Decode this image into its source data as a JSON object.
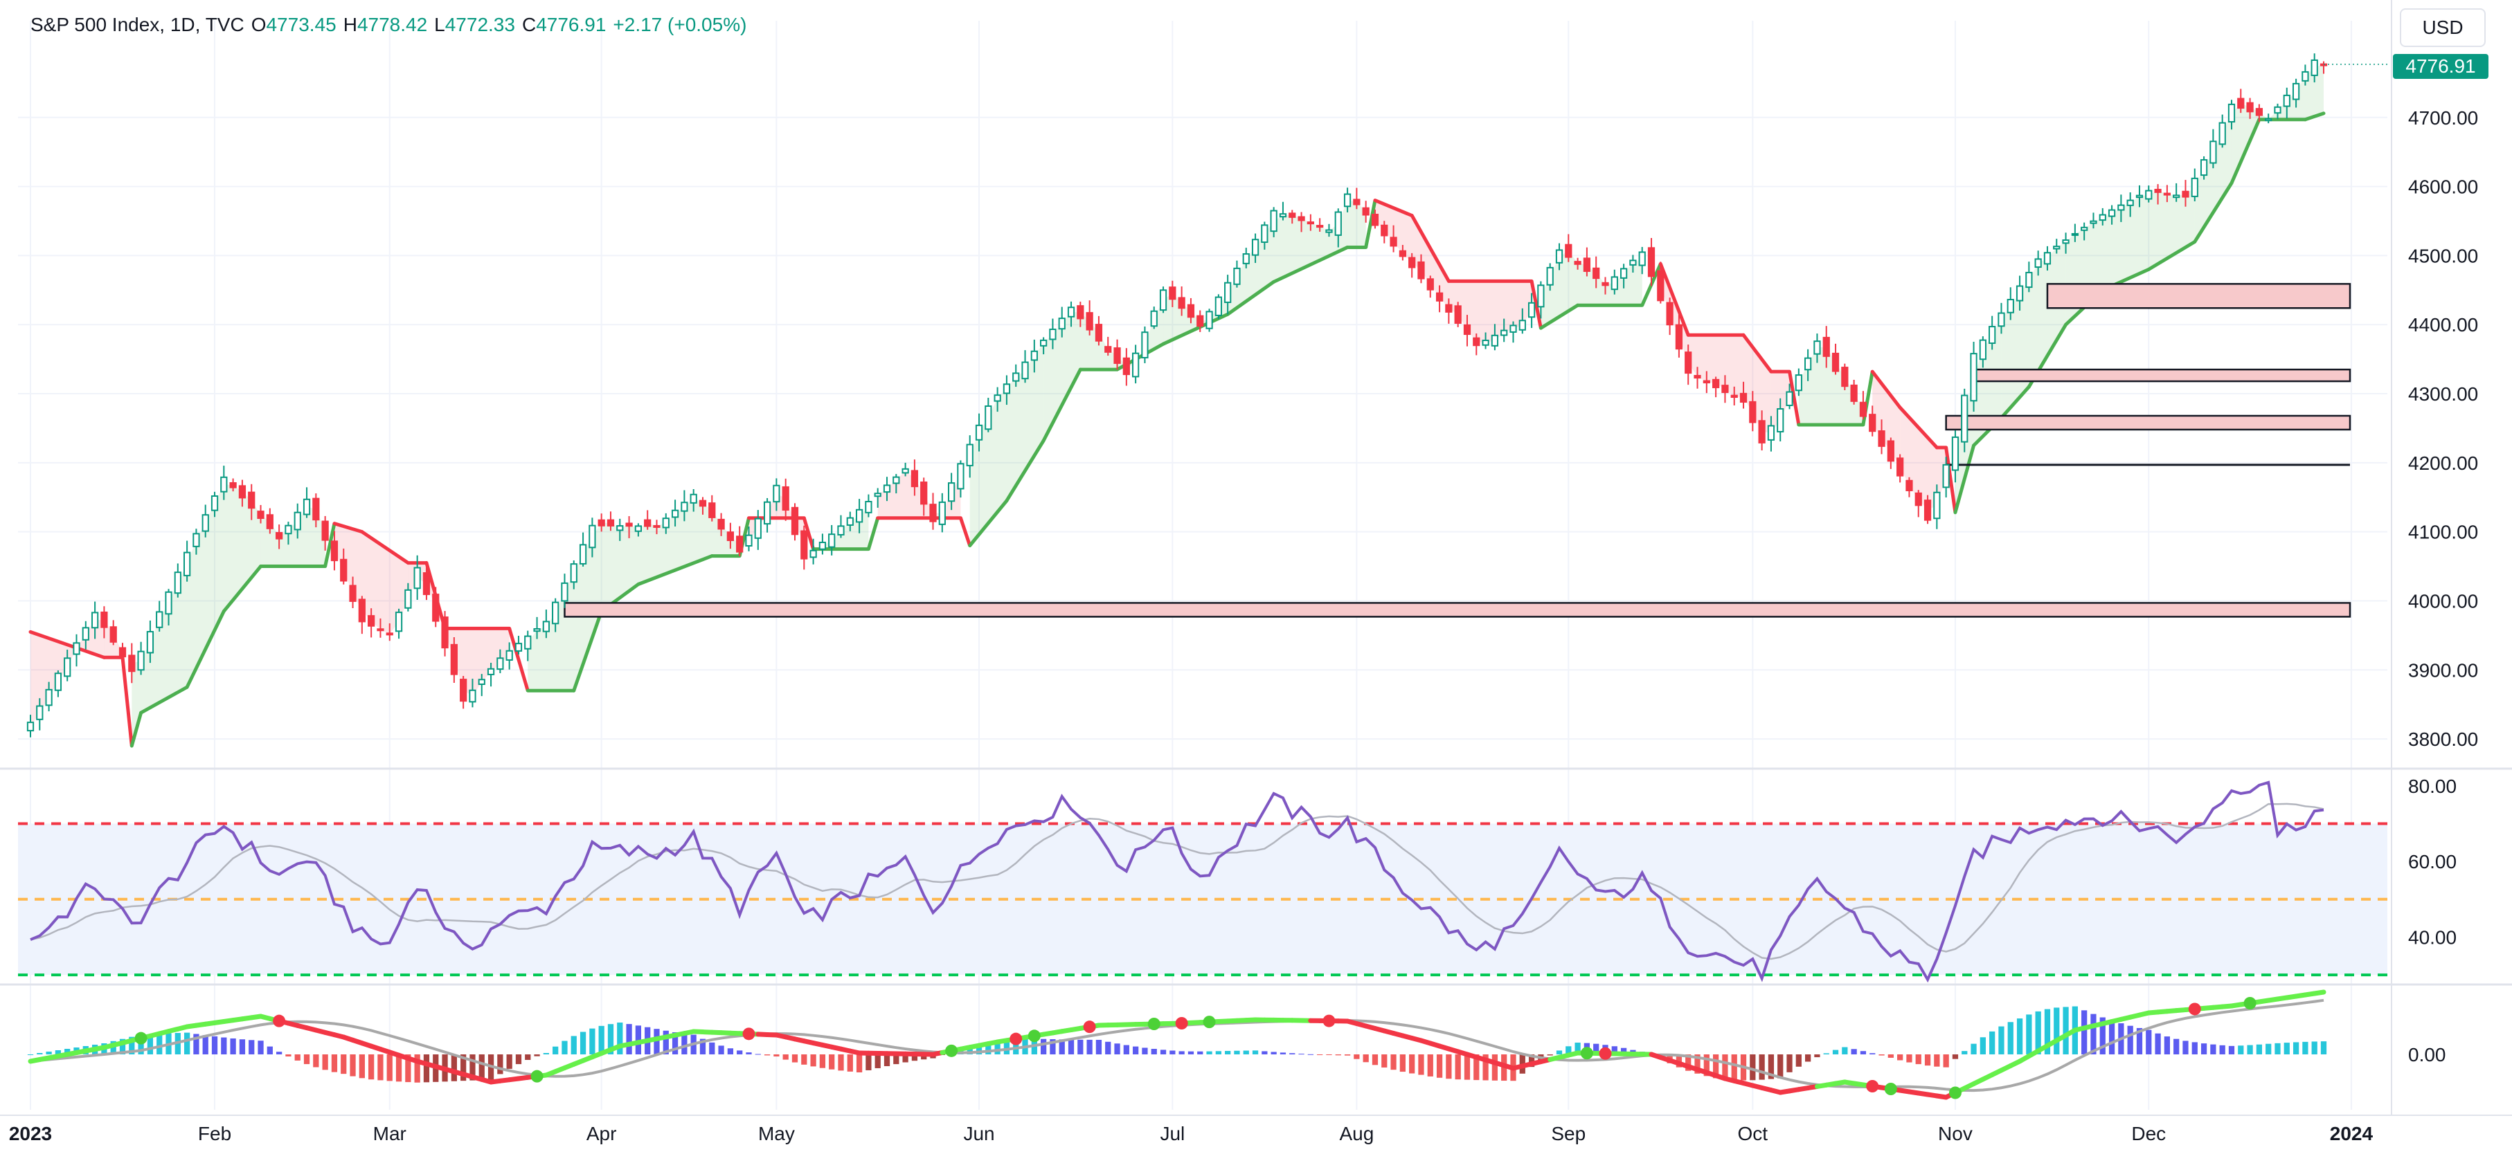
{
  "header": {
    "symbol_title": "S&P 500 Index, 1D, TVC",
    "ohlc": {
      "o_label": "O",
      "o_value": "4773.45",
      "h_label": "H",
      "h_value": "4778.42",
      "l_label": "L",
      "l_value": "4772.33",
      "c_label": "C",
      "c_value": "4776.91",
      "change": "+2.17 (+0.05%)"
    },
    "currency": "USD",
    "last_price_tag": "4776.91"
  },
  "colors": {
    "up": "#089981",
    "down": "#f23645",
    "supertrend_up": "#4caf50",
    "supertrend_down": "#f23645",
    "rsi_line": "#7e57c2",
    "rsi_band": "#eef3fd",
    "zone_fill": "#f7c9cb",
    "grid": "#f0f3fa"
  },
  "months": [
    "2023",
    "Feb",
    "Mar",
    "Apr",
    "May",
    "Jun",
    "Jul",
    "Aug",
    "Sep",
    "Oct",
    "Nov",
    "Dec",
    "2024"
  ],
  "chart_data": [
    {
      "type": "candlestick",
      "title": "S&P 500 Index, 1D, TVC",
      "y_ticks": [
        "4700.00",
        "4600.00",
        "4500.00",
        "4400.00",
        "4300.00",
        "4200.00",
        "4100.00",
        "4000.00",
        "3900.00",
        "3800.00"
      ],
      "ylim": [
        3760,
        4800
      ],
      "x_range": [
        "2023-01-03",
        "2023-12-29"
      ],
      "anchors": [
        [
          "2023-01-03",
          3824
        ],
        [
          "2023-01-06",
          3895
        ],
        [
          "2023-01-12",
          3983
        ],
        [
          "2023-01-19",
          3898
        ],
        [
          "2023-01-27",
          4070
        ],
        [
          "2023-02-02",
          4179
        ],
        [
          "2023-02-10",
          4090
        ],
        [
          "2023-02-15",
          4147
        ],
        [
          "2023-02-24",
          3970
        ],
        [
          "2023-03-01",
          3951
        ],
        [
          "2023-03-06",
          4048
        ],
        [
          "2023-03-13",
          3855
        ],
        [
          "2023-03-17",
          3917
        ],
        [
          "2023-03-24",
          3970
        ],
        [
          "2023-03-31",
          4109
        ],
        [
          "2023-04-12",
          4108
        ],
        [
          "2023-04-18",
          4154
        ],
        [
          "2023-04-25",
          4071
        ],
        [
          "2023-05-01",
          4167
        ],
        [
          "2023-05-04",
          4061
        ],
        [
          "2023-05-19",
          4191
        ],
        [
          "2023-05-24",
          4115
        ],
        [
          "2023-06-02",
          4282
        ],
        [
          "2023-06-15",
          4425
        ],
        [
          "2023-06-26",
          4328
        ],
        [
          "2023-06-30",
          4450
        ],
        [
          "2023-07-07",
          4398
        ],
        [
          "2023-07-19",
          4565
        ],
        [
          "2023-07-27",
          4537
        ],
        [
          "2023-07-31",
          4589
        ],
        [
          "2023-08-08",
          4499
        ],
        [
          "2023-08-18",
          4370
        ],
        [
          "2023-08-25",
          4406
        ],
        [
          "2023-08-31",
          4508
        ],
        [
          "2023-09-08",
          4457
        ],
        [
          "2023-09-14",
          4505
        ],
        [
          "2023-09-21",
          4330
        ],
        [
          "2023-09-29",
          4288
        ],
        [
          "2023-10-03",
          4229
        ],
        [
          "2023-10-11",
          4376
        ],
        [
          "2023-10-20",
          4224
        ],
        [
          "2023-10-27",
          4117
        ],
        [
          "2023-11-01",
          4237
        ],
        [
          "2023-11-03",
          4358
        ],
        [
          "2023-11-14",
          4495
        ],
        [
          "2023-11-24",
          4559
        ],
        [
          "2023-12-01",
          4594
        ],
        [
          "2023-12-07",
          4585
        ],
        [
          "2023-12-14",
          4719
        ],
        [
          "2023-12-20",
          4698
        ],
        [
          "2023-12-28",
          4783
        ],
        [
          "2023-12-29",
          4777
        ]
      ],
      "supertrend": [
        [
          "2023-01-03",
          3955,
          "down"
        ],
        [
          "2023-01-13",
          3918,
          "down"
        ],
        [
          "2023-01-18",
          3918,
          "down"
        ],
        [
          "2023-01-19",
          3790,
          "up"
        ],
        [
          "2023-01-20",
          3838,
          "up"
        ],
        [
          "2023-01-27",
          3875,
          "up"
        ],
        [
          "2023-02-02",
          3985,
          "up"
        ],
        [
          "2023-02-08",
          4050,
          "up"
        ],
        [
          "2023-02-17",
          4050,
          "up"
        ],
        [
          "2023-02-21",
          4112,
          "down"
        ],
        [
          "2023-02-24",
          4100,
          "down"
        ],
        [
          "2023-03-03",
          4055,
          "down"
        ],
        [
          "2023-03-07",
          4055,
          "down"
        ],
        [
          "2023-03-09",
          3960,
          "down"
        ],
        [
          "2023-03-20",
          3960,
          "down"
        ],
        [
          "2023-03-22",
          3870,
          "up"
        ],
        [
          "2023-03-29",
          3870,
          "up"
        ],
        [
          "2023-04-03",
          3985,
          "up"
        ],
        [
          "2023-04-10",
          4024,
          "up"
        ],
        [
          "2023-04-20",
          4065,
          "up"
        ],
        [
          "2023-04-25",
          4065,
          "up"
        ],
        [
          "2023-04-26",
          4120,
          "down"
        ],
        [
          "2023-05-04",
          4120,
          "down"
        ],
        [
          "2023-05-05",
          4075,
          "up"
        ],
        [
          "2023-05-15",
          4075,
          "up"
        ],
        [
          "2023-05-16",
          4120,
          "down"
        ],
        [
          "2023-05-30",
          4120,
          "down"
        ],
        [
          "2023-05-31",
          4080,
          "up"
        ],
        [
          "2023-06-06",
          4145,
          "up"
        ],
        [
          "2023-06-12",
          4232,
          "up"
        ],
        [
          "2023-06-16",
          4335,
          "up"
        ],
        [
          "2023-06-23",
          4335,
          "up"
        ],
        [
          "2023-06-30",
          4372,
          "up"
        ],
        [
          "2023-07-12",
          4415,
          "up"
        ],
        [
          "2023-07-19",
          4462,
          "up"
        ],
        [
          "2023-07-31",
          4512,
          "up"
        ],
        [
          "2023-08-02",
          4512,
          "up"
        ],
        [
          "2023-08-03",
          4580,
          "down"
        ],
        [
          "2023-08-09",
          4558,
          "down"
        ],
        [
          "2023-08-15",
          4463,
          "down"
        ],
        [
          "2023-08-28",
          4463,
          "down"
        ],
        [
          "2023-08-29",
          4395,
          "up"
        ],
        [
          "2023-09-05",
          4428,
          "up"
        ],
        [
          "2023-09-14",
          4428,
          "up"
        ],
        [
          "2023-09-18",
          4488,
          "down"
        ],
        [
          "2023-09-21",
          4385,
          "down"
        ],
        [
          "2023-09-29",
          4385,
          "down"
        ],
        [
          "2023-10-04",
          4332,
          "down"
        ],
        [
          "2023-10-06",
          4332,
          "down"
        ],
        [
          "2023-10-09",
          4255,
          "up"
        ],
        [
          "2023-10-18",
          4255,
          "up"
        ],
        [
          "2023-10-19",
          4332,
          "down"
        ],
        [
          "2023-10-24",
          4280,
          "down"
        ],
        [
          "2023-10-30",
          4222,
          "down"
        ],
        [
          "2023-10-31",
          4222,
          "down"
        ],
        [
          "2023-11-01",
          4128,
          "up"
        ],
        [
          "2023-11-03",
          4225,
          "up"
        ],
        [
          "2023-11-08",
          4265,
          "up"
        ],
        [
          "2023-11-13",
          4310,
          "up"
        ],
        [
          "2023-11-17",
          4400,
          "up"
        ],
        [
          "2023-11-24",
          4450,
          "up"
        ],
        [
          "2023-12-01",
          4480,
          "up"
        ],
        [
          "2023-12-08",
          4520,
          "up"
        ],
        [
          "2023-12-14",
          4605,
          "up"
        ],
        [
          "2023-12-19",
          4697,
          "up"
        ],
        [
          "2023-12-27",
          4697,
          "up"
        ],
        [
          "2023-12-29",
          4706,
          "up"
        ]
      ],
      "zones": [
        {
          "from": "2023-11-15",
          "to": "2023-12-29",
          "low": 4424,
          "high": 4459
        },
        {
          "from": "2023-11-03",
          "to": "2023-12-29",
          "low": 4318,
          "high": 4335
        },
        {
          "from": "2023-10-31",
          "to": "2023-12-29",
          "low": 4248,
          "high": 4268
        },
        {
          "from": "2023-03-28",
          "to": "2023-12-29",
          "low": 3977,
          "high": 3997
        }
      ],
      "level_lines": [
        {
          "from": "2023-10-31",
          "to": "2023-12-29",
          "value": 4197
        }
      ]
    },
    {
      "type": "line",
      "title": "",
      "y_ticks": [
        "80.00",
        "60.00",
        "40.00"
      ],
      "ylim": [
        28,
        84
      ],
      "levels": {
        "upper": 70,
        "middle": 50,
        "lower": 30
      },
      "rsi_anchors": [
        [
          "2023-01-03",
          39
        ],
        [
          "2023-01-06",
          45
        ],
        [
          "2023-01-12",
          54
        ],
        [
          "2023-01-19",
          43
        ],
        [
          "2023-01-27",
          60
        ],
        [
          "2023-02-02",
          70
        ],
        [
          "2023-02-10",
          56
        ],
        [
          "2023-02-15",
          61
        ],
        [
          "2023-02-24",
          40
        ],
        [
          "2023-03-01",
          38
        ],
        [
          "2023-03-06",
          55
        ],
        [
          "2023-03-13",
          36
        ],
        [
          "2023-03-17",
          44
        ],
        [
          "2023-03-24",
          48
        ],
        [
          "2023-03-31",
          63
        ],
        [
          "2023-04-12",
          62
        ],
        [
          "2023-04-18",
          66
        ],
        [
          "2023-04-25",
          48
        ],
        [
          "2023-05-01",
          62
        ],
        [
          "2023-05-04",
          44
        ],
        [
          "2023-05-19",
          60
        ],
        [
          "2023-05-24",
          48
        ],
        [
          "2023-06-02",
          66
        ],
        [
          "2023-06-15",
          76
        ],
        [
          "2023-06-26",
          58
        ],
        [
          "2023-06-30",
          70
        ],
        [
          "2023-07-07",
          56
        ],
        [
          "2023-07-19",
          76
        ],
        [
          "2023-07-27",
          68
        ],
        [
          "2023-07-31",
          70
        ],
        [
          "2023-08-08",
          53
        ],
        [
          "2023-08-18",
          36
        ],
        [
          "2023-08-25",
          44
        ],
        [
          "2023-08-31",
          62
        ],
        [
          "2023-09-08",
          50
        ],
        [
          "2023-09-14",
          55
        ],
        [
          "2023-09-21",
          38
        ],
        [
          "2023-09-29",
          33
        ],
        [
          "2023-10-03",
          31
        ],
        [
          "2023-10-11",
          55
        ],
        [
          "2023-10-20",
          38
        ],
        [
          "2023-10-27",
          30
        ],
        [
          "2023-11-01",
          46
        ],
        [
          "2023-11-03",
          62
        ],
        [
          "2023-11-14",
          70
        ],
        [
          "2023-11-24",
          72
        ],
        [
          "2023-12-01",
          69
        ],
        [
          "2023-12-07",
          66
        ],
        [
          "2023-12-14",
          79
        ],
        [
          "2023-12-20",
          82
        ],
        [
          "2023-12-21",
          67
        ],
        [
          "2023-12-28",
          73
        ],
        [
          "2023-12-29",
          73
        ]
      ]
    },
    {
      "type": "bar",
      "title": "",
      "y_ticks": [
        "0.00"
      ],
      "macd_anchors": [
        [
          "2023-01-03",
          -10
        ],
        [
          "2023-01-13",
          10
        ],
        [
          "2023-01-27",
          40
        ],
        [
          "2023-02-08",
          55
        ],
        [
          "2023-02-22",
          25
        ],
        [
          "2023-03-06",
          -10
        ],
        [
          "2023-03-16",
          -40
        ],
        [
          "2023-03-24",
          -30
        ],
        [
          "2023-04-05",
          12
        ],
        [
          "2023-04-18",
          33
        ],
        [
          "2023-05-01",
          28
        ],
        [
          "2023-05-12",
          2
        ],
        [
          "2023-05-24",
          0
        ],
        [
          "2023-06-05",
          18
        ],
        [
          "2023-06-21",
          42
        ],
        [
          "2023-07-05",
          45
        ],
        [
          "2023-07-17",
          50
        ],
        [
          "2023-07-31",
          48
        ],
        [
          "2023-08-10",
          20
        ],
        [
          "2023-08-24",
          -20
        ],
        [
          "2023-09-05",
          2
        ],
        [
          "2023-09-15",
          0
        ],
        [
          "2023-09-27",
          -35
        ],
        [
          "2023-10-05",
          -55
        ],
        [
          "2023-10-16",
          -40
        ],
        [
          "2023-10-31",
          -62
        ],
        [
          "2023-11-10",
          -10
        ],
        [
          "2023-11-20",
          35
        ],
        [
          "2023-12-01",
          60
        ],
        [
          "2023-12-14",
          70
        ],
        [
          "2023-12-22",
          82
        ],
        [
          "2023-12-29",
          90
        ]
      ],
      "cross_markers_up": [
        "2023-01-20",
        "2023-03-23",
        "2023-05-26",
        "2023-06-09",
        "2023-06-29",
        "2023-07-10",
        "2023-09-06",
        "2023-10-23",
        "2023-11-01",
        "2023-12-18"
      ],
      "cross_markers_down": [
        "2023-02-10",
        "2023-04-26",
        "2023-06-07",
        "2023-06-20",
        "2023-07-05",
        "2023-07-27",
        "2023-09-08",
        "2023-10-19",
        "2023-12-08"
      ]
    }
  ]
}
